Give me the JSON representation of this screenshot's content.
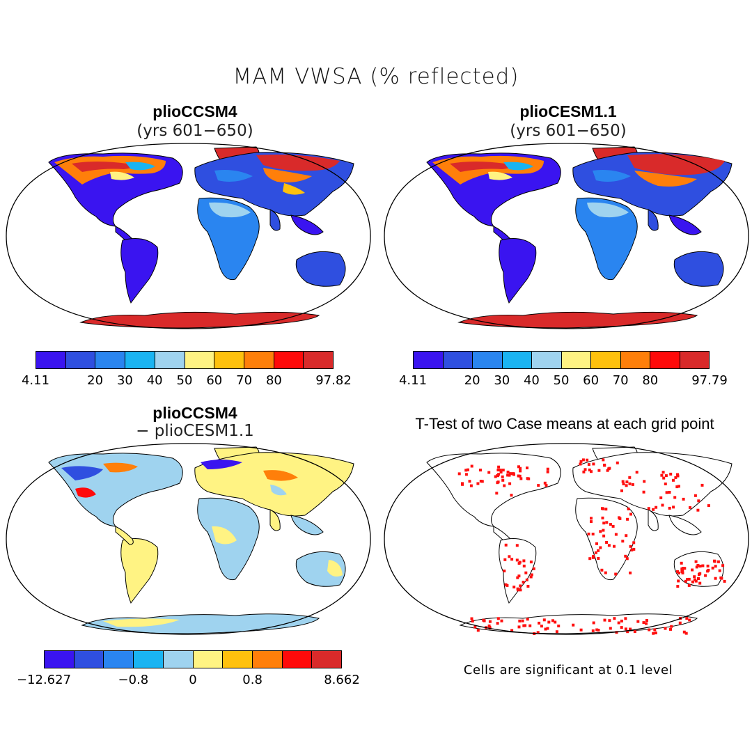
{
  "title": "MAM VWSA (% reflected)",
  "colors": {
    "scale": [
      "#3a14f0",
      "#2f4fe0",
      "#2a85f0",
      "#1ab4f2",
      "#9fd3ef",
      "#fff383",
      "#ffc10d",
      "#ff7f0a",
      "#ff0a0a",
      "#d92a2a"
    ],
    "significant": "#ff1010"
  },
  "panels": {
    "top_left": {
      "title": "plioCCSM4",
      "subtitle": "(yrs 601−650)"
    },
    "top_right": {
      "title": "plioCESM1.1",
      "subtitle": "(yrs 601−650)"
    },
    "bottom_left": {
      "title": "plioCCSM4",
      "subtitle": "− plioCESM1.1"
    },
    "bottom_right": {
      "title": "T-Test of two Case means at each grid point",
      "note": "Cells are significant at 0.1 level"
    }
  },
  "colorbars": {
    "top_left": {
      "labels": [
        "4.11",
        "20",
        "30",
        "40",
        "50",
        "60",
        "70",
        "80",
        "97.82"
      ],
      "ticks": [
        0,
        2,
        3,
        4,
        5,
        6,
        7,
        8,
        10
      ]
    },
    "top_right": {
      "labels": [
        "4.11",
        "20",
        "30",
        "40",
        "50",
        "60",
        "70",
        "80",
        "97.79"
      ],
      "ticks": [
        0,
        2,
        3,
        4,
        5,
        6,
        7,
        8,
        10
      ]
    },
    "bottom_left": {
      "labels": [
        "−12.627",
        "−0.8",
        "0",
        "0.8",
        "8.662"
      ],
      "ticks": [
        0,
        3,
        5,
        7,
        10
      ]
    }
  }
}
